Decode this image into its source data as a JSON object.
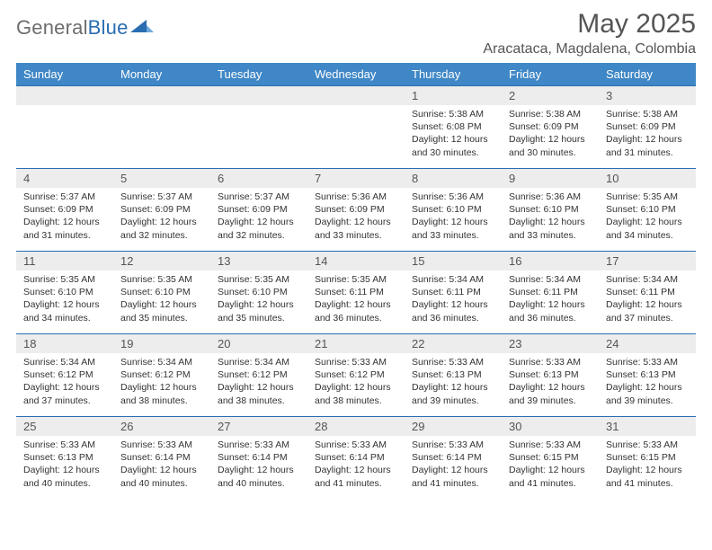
{
  "brand": {
    "text1": "General",
    "text2": "Blue",
    "color1": "#6d6d6d",
    "color2": "#2a6db0"
  },
  "title": "May 2025",
  "location": "Aracataca, Magdalena, Colombia",
  "header_bg": "#3f87c6",
  "daynum_bg": "#ededed",
  "grid_border": "#2a6db0",
  "weekdays": [
    "Sunday",
    "Monday",
    "Tuesday",
    "Wednesday",
    "Thursday",
    "Friday",
    "Saturday"
  ],
  "weeks": [
    [
      null,
      null,
      null,
      null,
      {
        "n": "1",
        "sunrise": "5:38 AM",
        "sunset": "6:08 PM",
        "dl": "12 hours and 30 minutes."
      },
      {
        "n": "2",
        "sunrise": "5:38 AM",
        "sunset": "6:09 PM",
        "dl": "12 hours and 30 minutes."
      },
      {
        "n": "3",
        "sunrise": "5:38 AM",
        "sunset": "6:09 PM",
        "dl": "12 hours and 31 minutes."
      }
    ],
    [
      {
        "n": "4",
        "sunrise": "5:37 AM",
        "sunset": "6:09 PM",
        "dl": "12 hours and 31 minutes."
      },
      {
        "n": "5",
        "sunrise": "5:37 AM",
        "sunset": "6:09 PM",
        "dl": "12 hours and 32 minutes."
      },
      {
        "n": "6",
        "sunrise": "5:37 AM",
        "sunset": "6:09 PM",
        "dl": "12 hours and 32 minutes."
      },
      {
        "n": "7",
        "sunrise": "5:36 AM",
        "sunset": "6:09 PM",
        "dl": "12 hours and 33 minutes."
      },
      {
        "n": "8",
        "sunrise": "5:36 AM",
        "sunset": "6:10 PM",
        "dl": "12 hours and 33 minutes."
      },
      {
        "n": "9",
        "sunrise": "5:36 AM",
        "sunset": "6:10 PM",
        "dl": "12 hours and 33 minutes."
      },
      {
        "n": "10",
        "sunrise": "5:35 AM",
        "sunset": "6:10 PM",
        "dl": "12 hours and 34 minutes."
      }
    ],
    [
      {
        "n": "11",
        "sunrise": "5:35 AM",
        "sunset": "6:10 PM",
        "dl": "12 hours and 34 minutes."
      },
      {
        "n": "12",
        "sunrise": "5:35 AM",
        "sunset": "6:10 PM",
        "dl": "12 hours and 35 minutes."
      },
      {
        "n": "13",
        "sunrise": "5:35 AM",
        "sunset": "6:10 PM",
        "dl": "12 hours and 35 minutes."
      },
      {
        "n": "14",
        "sunrise": "5:35 AM",
        "sunset": "6:11 PM",
        "dl": "12 hours and 36 minutes."
      },
      {
        "n": "15",
        "sunrise": "5:34 AM",
        "sunset": "6:11 PM",
        "dl": "12 hours and 36 minutes."
      },
      {
        "n": "16",
        "sunrise": "5:34 AM",
        "sunset": "6:11 PM",
        "dl": "12 hours and 36 minutes."
      },
      {
        "n": "17",
        "sunrise": "5:34 AM",
        "sunset": "6:11 PM",
        "dl": "12 hours and 37 minutes."
      }
    ],
    [
      {
        "n": "18",
        "sunrise": "5:34 AM",
        "sunset": "6:12 PM",
        "dl": "12 hours and 37 minutes."
      },
      {
        "n": "19",
        "sunrise": "5:34 AM",
        "sunset": "6:12 PM",
        "dl": "12 hours and 38 minutes."
      },
      {
        "n": "20",
        "sunrise": "5:34 AM",
        "sunset": "6:12 PM",
        "dl": "12 hours and 38 minutes."
      },
      {
        "n": "21",
        "sunrise": "5:33 AM",
        "sunset": "6:12 PM",
        "dl": "12 hours and 38 minutes."
      },
      {
        "n": "22",
        "sunrise": "5:33 AM",
        "sunset": "6:13 PM",
        "dl": "12 hours and 39 minutes."
      },
      {
        "n": "23",
        "sunrise": "5:33 AM",
        "sunset": "6:13 PM",
        "dl": "12 hours and 39 minutes."
      },
      {
        "n": "24",
        "sunrise": "5:33 AM",
        "sunset": "6:13 PM",
        "dl": "12 hours and 39 minutes."
      }
    ],
    [
      {
        "n": "25",
        "sunrise": "5:33 AM",
        "sunset": "6:13 PM",
        "dl": "12 hours and 40 minutes."
      },
      {
        "n": "26",
        "sunrise": "5:33 AM",
        "sunset": "6:14 PM",
        "dl": "12 hours and 40 minutes."
      },
      {
        "n": "27",
        "sunrise": "5:33 AM",
        "sunset": "6:14 PM",
        "dl": "12 hours and 40 minutes."
      },
      {
        "n": "28",
        "sunrise": "5:33 AM",
        "sunset": "6:14 PM",
        "dl": "12 hours and 41 minutes."
      },
      {
        "n": "29",
        "sunrise": "5:33 AM",
        "sunset": "6:14 PM",
        "dl": "12 hours and 41 minutes."
      },
      {
        "n": "30",
        "sunrise": "5:33 AM",
        "sunset": "6:15 PM",
        "dl": "12 hours and 41 minutes."
      },
      {
        "n": "31",
        "sunrise": "5:33 AM",
        "sunset": "6:15 PM",
        "dl": "12 hours and 41 minutes."
      }
    ]
  ],
  "labels": {
    "sunrise": "Sunrise:",
    "sunset": "Sunset:",
    "daylight": "Daylight:"
  }
}
